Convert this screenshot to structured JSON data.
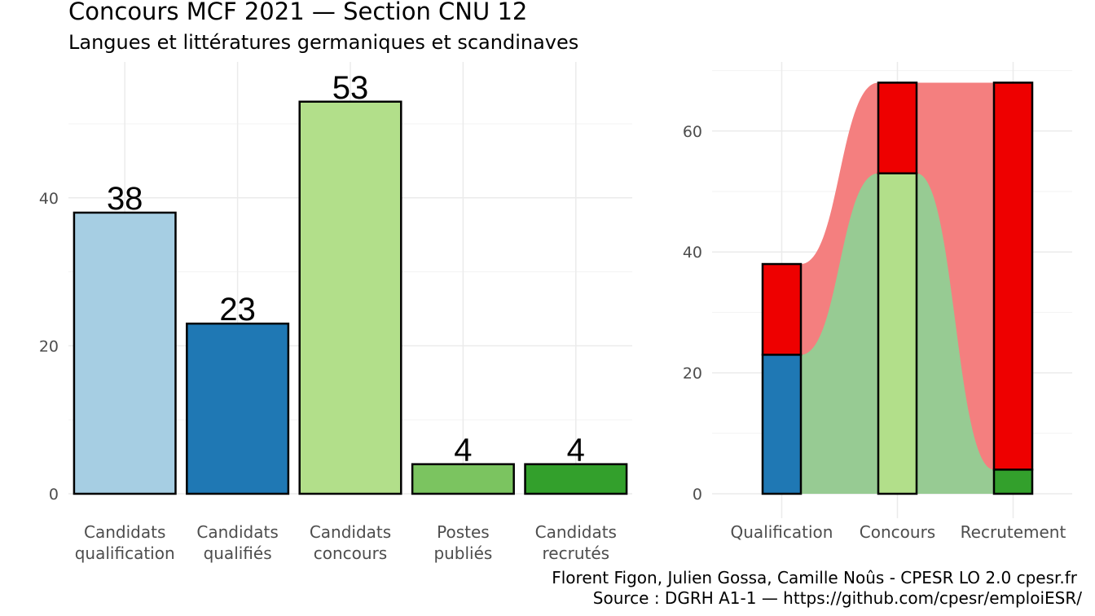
{
  "title": "Concours MCF  2021  —  Section CNU 12",
  "subtitle": "Langues et littératures germaniques et scandinaves",
  "caption": {
    "line1": "Florent Figon, Julien Gossa, Camille Noûs - CPESR LO 2.0 cpesr.fr",
    "line2": "Source : DGRH A1-1 — https://github.com/cpesr/emploiESR/"
  },
  "chart_data": [
    {
      "type": "bar",
      "categories": [
        [
          "Candidats",
          "qualification"
        ],
        [
          "Candidats",
          "qualifiés"
        ],
        [
          "Candidats",
          "concours"
        ],
        [
          "Postes",
          "publiés"
        ],
        [
          "Candidats",
          "recrutés"
        ]
      ],
      "values": [
        38,
        23,
        53,
        4,
        4
      ],
      "colors": [
        "#a6cee3",
        "#1f78b4",
        "#b2df8a",
        "#7bc460",
        "#33a02c"
      ],
      "ylim": [
        0,
        58
      ],
      "yticks": [
        0,
        20,
        40
      ],
      "grid": true,
      "data_labels": true
    },
    {
      "type": "bar",
      "stacked": true,
      "categories": [
        "Qualification",
        "Concours",
        "Recrutement"
      ],
      "series": [
        {
          "values": [
            23,
            53,
            4
          ],
          "colors": [
            "#1f78b4",
            "#b2df8a",
            "#33a02c"
          ]
        },
        {
          "values": [
            15,
            15,
            64
          ],
          "colors": [
            "#ee0000",
            "#ee0000",
            "#ee0000"
          ]
        }
      ],
      "flows": {
        "green_band": [
          23,
          53,
          4
        ],
        "red_band_top": [
          38,
          68,
          68
        ],
        "green_color": "#97cb93",
        "red_color": "#f47f7f"
      },
      "ylim": [
        -4,
        72
      ],
      "yticks": [
        0,
        20,
        40,
        60
      ],
      "grid": true
    }
  ]
}
